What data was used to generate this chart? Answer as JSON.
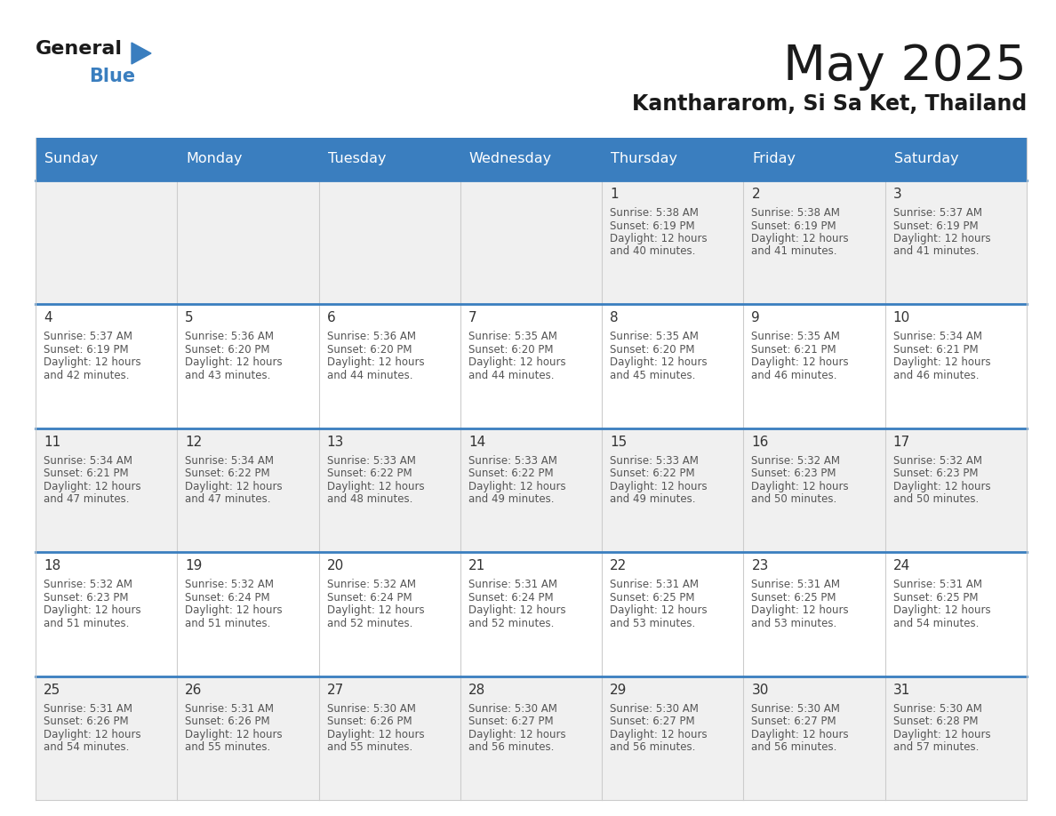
{
  "title": "May 2025",
  "subtitle": "Kanthararom, Si Sa Ket, Thailand",
  "header_bg": "#3a7ebf",
  "header_text": "#ffffff",
  "day_names": [
    "Sunday",
    "Monday",
    "Tuesday",
    "Wednesday",
    "Thursday",
    "Friday",
    "Saturday"
  ],
  "divider_color": "#3a7ebf",
  "col_line_color": "#cccccc",
  "row_bg_even": "#f0f0f0",
  "row_bg_odd": "#ffffff",
  "date_color": "#333333",
  "info_color": "#555555",
  "weeks": [
    [
      {
        "day": "",
        "sunrise": "",
        "sunset": "",
        "daylight": ""
      },
      {
        "day": "",
        "sunrise": "",
        "sunset": "",
        "daylight": ""
      },
      {
        "day": "",
        "sunrise": "",
        "sunset": "",
        "daylight": ""
      },
      {
        "day": "",
        "sunrise": "",
        "sunset": "",
        "daylight": ""
      },
      {
        "day": "1",
        "sunrise": "5:38 AM",
        "sunset": "6:19 PM",
        "daylight": "12 hours and 40 minutes."
      },
      {
        "day": "2",
        "sunrise": "5:38 AM",
        "sunset": "6:19 PM",
        "daylight": "12 hours and 41 minutes."
      },
      {
        "day": "3",
        "sunrise": "5:37 AM",
        "sunset": "6:19 PM",
        "daylight": "12 hours and 41 minutes."
      }
    ],
    [
      {
        "day": "4",
        "sunrise": "5:37 AM",
        "sunset": "6:19 PM",
        "daylight": "12 hours and 42 minutes."
      },
      {
        "day": "5",
        "sunrise": "5:36 AM",
        "sunset": "6:20 PM",
        "daylight": "12 hours and 43 minutes."
      },
      {
        "day": "6",
        "sunrise": "5:36 AM",
        "sunset": "6:20 PM",
        "daylight": "12 hours and 44 minutes."
      },
      {
        "day": "7",
        "sunrise": "5:35 AM",
        "sunset": "6:20 PM",
        "daylight": "12 hours and 44 minutes."
      },
      {
        "day": "8",
        "sunrise": "5:35 AM",
        "sunset": "6:20 PM",
        "daylight": "12 hours and 45 minutes."
      },
      {
        "day": "9",
        "sunrise": "5:35 AM",
        "sunset": "6:21 PM",
        "daylight": "12 hours and 46 minutes."
      },
      {
        "day": "10",
        "sunrise": "5:34 AM",
        "sunset": "6:21 PM",
        "daylight": "12 hours and 46 minutes."
      }
    ],
    [
      {
        "day": "11",
        "sunrise": "5:34 AM",
        "sunset": "6:21 PM",
        "daylight": "12 hours and 47 minutes."
      },
      {
        "day": "12",
        "sunrise": "5:34 AM",
        "sunset": "6:22 PM",
        "daylight": "12 hours and 47 minutes."
      },
      {
        "day": "13",
        "sunrise": "5:33 AM",
        "sunset": "6:22 PM",
        "daylight": "12 hours and 48 minutes."
      },
      {
        "day": "14",
        "sunrise": "5:33 AM",
        "sunset": "6:22 PM",
        "daylight": "12 hours and 49 minutes."
      },
      {
        "day": "15",
        "sunrise": "5:33 AM",
        "sunset": "6:22 PM",
        "daylight": "12 hours and 49 minutes."
      },
      {
        "day": "16",
        "sunrise": "5:32 AM",
        "sunset": "6:23 PM",
        "daylight": "12 hours and 50 minutes."
      },
      {
        "day": "17",
        "sunrise": "5:32 AM",
        "sunset": "6:23 PM",
        "daylight": "12 hours and 50 minutes."
      }
    ],
    [
      {
        "day": "18",
        "sunrise": "5:32 AM",
        "sunset": "6:23 PM",
        "daylight": "12 hours and 51 minutes."
      },
      {
        "day": "19",
        "sunrise": "5:32 AM",
        "sunset": "6:24 PM",
        "daylight": "12 hours and 51 minutes."
      },
      {
        "day": "20",
        "sunrise": "5:32 AM",
        "sunset": "6:24 PM",
        "daylight": "12 hours and 52 minutes."
      },
      {
        "day": "21",
        "sunrise": "5:31 AM",
        "sunset": "6:24 PM",
        "daylight": "12 hours and 52 minutes."
      },
      {
        "day": "22",
        "sunrise": "5:31 AM",
        "sunset": "6:25 PM",
        "daylight": "12 hours and 53 minutes."
      },
      {
        "day": "23",
        "sunrise": "5:31 AM",
        "sunset": "6:25 PM",
        "daylight": "12 hours and 53 minutes."
      },
      {
        "day": "24",
        "sunrise": "5:31 AM",
        "sunset": "6:25 PM",
        "daylight": "12 hours and 54 minutes."
      }
    ],
    [
      {
        "day": "25",
        "sunrise": "5:31 AM",
        "sunset": "6:26 PM",
        "daylight": "12 hours and 54 minutes."
      },
      {
        "day": "26",
        "sunrise": "5:31 AM",
        "sunset": "6:26 PM",
        "daylight": "12 hours and 55 minutes."
      },
      {
        "day": "27",
        "sunrise": "5:30 AM",
        "sunset": "6:26 PM",
        "daylight": "12 hours and 55 minutes."
      },
      {
        "day": "28",
        "sunrise": "5:30 AM",
        "sunset": "6:27 PM",
        "daylight": "12 hours and 56 minutes."
      },
      {
        "day": "29",
        "sunrise": "5:30 AM",
        "sunset": "6:27 PM",
        "daylight": "12 hours and 56 minutes."
      },
      {
        "day": "30",
        "sunrise": "5:30 AM",
        "sunset": "6:27 PM",
        "daylight": "12 hours and 56 minutes."
      },
      {
        "day": "31",
        "sunrise": "5:30 AM",
        "sunset": "6:28 PM",
        "daylight": "12 hours and 57 minutes."
      }
    ]
  ],
  "fig_width": 11.88,
  "fig_height": 9.18,
  "logo_triangle_color": "#3a7ebf"
}
